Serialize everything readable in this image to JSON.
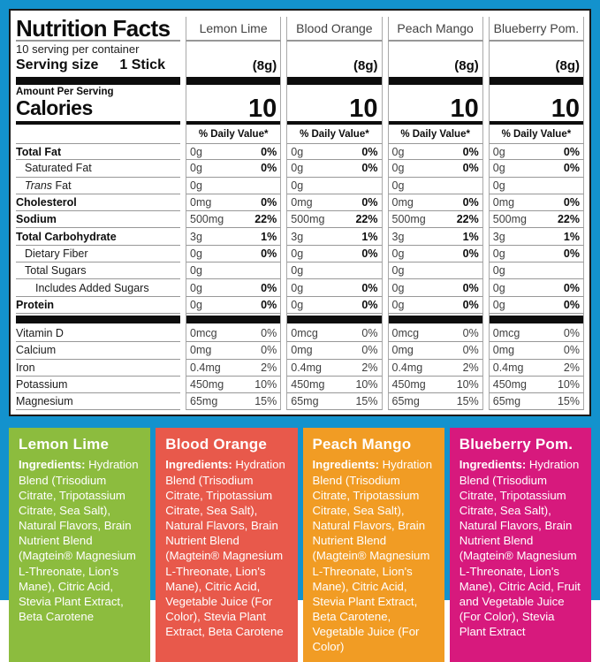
{
  "frame": {
    "border_color": "#1392cd"
  },
  "panel": {
    "title": "Nutrition Facts",
    "servings_per_container": "10 serving per container",
    "serving_size_label": "Serving size",
    "serving_size_value": "1 Stick",
    "amount_per_serving": "Amount Per Serving",
    "calories_label": "Calories",
    "daily_value_header": "% Daily Value*",
    "columns": [
      {
        "name": "Lemon Lime",
        "serving_weight": "(8g)",
        "calories": "10"
      },
      {
        "name": "Blood Orange",
        "serving_weight": "(8g)",
        "calories": "10"
      },
      {
        "name": "Peach Mango",
        "serving_weight": "(8g)",
        "calories": "10"
      },
      {
        "name": "Blueberry Pom.",
        "serving_weight": "(8g)",
        "calories": "10"
      }
    ],
    "rows": [
      {
        "label": "Total Fat",
        "style": "bold",
        "amount": "0g",
        "dv": "0%",
        "dv_bold": true
      },
      {
        "label": "Saturated Fat",
        "style": "ind1",
        "amount": "0g",
        "dv": "0%",
        "dv_bold": true
      },
      {
        "label": "Trans Fat",
        "style": "ind1",
        "italic_first_word": true,
        "amount": "0g",
        "dv": "",
        "dv_bold": false
      },
      {
        "label": "Cholesterol",
        "style": "bold",
        "amount": "0mg",
        "dv": "0%",
        "dv_bold": true
      },
      {
        "label": "Sodium",
        "style": "bold",
        "amount": "500mg",
        "dv": "22%",
        "dv_bold": true
      },
      {
        "label": "Total Carbohydrate",
        "style": "bold",
        "amount": "3g",
        "dv": "1%",
        "dv_bold": true
      },
      {
        "label": "Dietary Fiber",
        "style": "ind1",
        "amount": "0g",
        "dv": "0%",
        "dv_bold": true
      },
      {
        "label": "Total Sugars",
        "style": "ind1",
        "amount": "0g",
        "dv": "",
        "dv_bold": false
      },
      {
        "label": "Includes Added Sugars",
        "style": "ind2",
        "amount": "0g",
        "dv": "0%",
        "dv_bold": true
      },
      {
        "label": "Protein",
        "style": "bold",
        "amount": "0g",
        "dv": "0%",
        "dv_bold": true
      },
      {
        "separator": true
      },
      {
        "label": "Vitamin D",
        "style": "plain",
        "amount": "0mcg",
        "dv": "0%",
        "dv_bold": false
      },
      {
        "label": "Calcium",
        "style": "plain",
        "amount": "0mg",
        "dv": "0%",
        "dv_bold": false
      },
      {
        "label": "Iron",
        "style": "plain",
        "amount": "0.4mg",
        "dv": "2%",
        "dv_bold": false
      },
      {
        "label": "Potassium",
        "style": "plain",
        "amount": "450mg",
        "dv": "10%",
        "dv_bold": false
      },
      {
        "label": "Magnesium",
        "style": "plain",
        "amount": "65mg",
        "dv": "15%",
        "dv_bold": false
      }
    ]
  },
  "ingredient_boxes": [
    {
      "title": "Lemon Lime",
      "color": "#8cbc3e",
      "ingredients_label": "Ingredients:",
      "text": "Hydration Blend (Trisodium Citrate, Tripotassium Citrate, Sea Salt), Natural Flavors, Brain Nutrient Blend (Magtein® Magnesium L-Threonate, Lion's Mane), Citric Acid, Stevia Plant Extract, Beta Carotene"
    },
    {
      "title": "Blood Orange",
      "color": "#e8594b",
      "ingredients_label": "Ingredients:",
      "text": "Hydration Blend (Trisodium Citrate, Tripotassium Citrate, Sea Salt), Natural Flavors, Brain Nutrient Blend (Magtein® Magnesium L-Threonate, Lion's Mane), Citric Acid, Vegetable Juice (For Color), Stevia Plant Extract, Beta Carotene"
    },
    {
      "title": "Peach Mango",
      "color": "#f19c24",
      "ingredients_label": "Ingredients:",
      "text": "Hydration Blend (Trisodium Citrate, Tripotassium Citrate, Sea Salt), Natural Flavors, Brain Nutrient Blend (Magtein® Magnesium L-Threonate, Lion's Mane), Citric Acid, Stevia Plant Extract, Beta Carotene, Vegetable Juice (For Color)"
    },
    {
      "title": "Blueberry Pom.",
      "color": "#d7197d",
      "ingredients_label": "Ingredients:",
      "text": "Hydration Blend (Trisodium Citrate, Tripotassium Citrate, Sea Salt), Natural Flavors, Brain Nutrient Blend (Magtein® Magnesium L-Threonate, Lion's Mane), Citric Acid, Fruit and Vegetable Juice (For Color), Stevia Plant Extract"
    }
  ]
}
